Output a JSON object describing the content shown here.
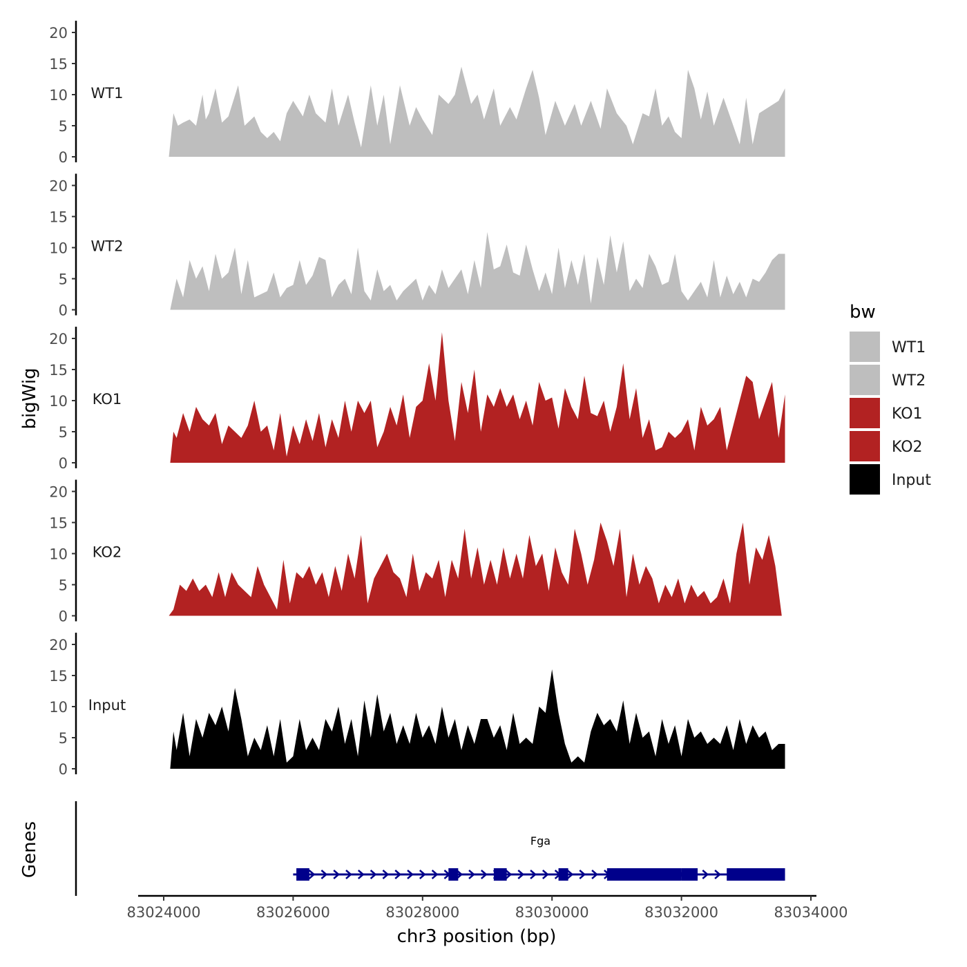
{
  "chart_data": {
    "type": "area",
    "title": "",
    "ylabel": "bigWig",
    "xlabel": "chr3 position (bp)",
    "genes_label": "Genes",
    "xlim": [
      83023600,
      83034000
    ],
    "ylim": [
      0,
      21
    ],
    "x_ticks": [
      83024000,
      83026000,
      83028000,
      83030000,
      83032000,
      83034000
    ],
    "x_tick_labels": [
      "83024000",
      "83026000",
      "83028000",
      "83030000",
      "83032000",
      "83034000"
    ],
    "y_ticks": [
      0,
      5,
      10,
      15,
      20
    ],
    "y_tick_labels": [
      "0",
      "5",
      "10",
      "15",
      "20"
    ],
    "legend": {
      "title": "bw",
      "position": "right",
      "items": [
        {
          "label": "WT1",
          "color": "#bebebe"
        },
        {
          "label": "WT2",
          "color": "#bebebe"
        },
        {
          "label": "KO1",
          "color": "#b22222"
        },
        {
          "label": "KO2",
          "color": "#b22222"
        },
        {
          "label": "Input",
          "color": "#000000"
        }
      ]
    },
    "series": [
      {
        "name": "WT1",
        "color": "#bebebe",
        "x": [
          83024080,
          83024150,
          83024220,
          83024300,
          83024400,
          83024500,
          83024600,
          83024650,
          83024700,
          83024800,
          83024900,
          83025000,
          83025150,
          83025250,
          83025400,
          83025500,
          83025600,
          83025700,
          83025800,
          83025900,
          83026000,
          83026150,
          83026250,
          83026350,
          83026500,
          83026600,
          83026700,
          83026850,
          83026950,
          83027050,
          83027200,
          83027300,
          83027400,
          83027500,
          83027650,
          83027800,
          83027900,
          83028000,
          83028150,
          83028250,
          83028400,
          83028500,
          83028600,
          83028750,
          83028850,
          83028950,
          83029100,
          83029200,
          83029350,
          83029450,
          83029600,
          83029700,
          83029800,
          83029900,
          83030050,
          83030200,
          83030350,
          83030450,
          83030600,
          83030750,
          83030850,
          83031000,
          83031150,
          83031250,
          83031400,
          83031500,
          83031600,
          83031700,
          83031800,
          83031900,
          83032000,
          83032100,
          83032200,
          83032300,
          83032400,
          83032500,
          83032650,
          83032800,
          83032900,
          83033000,
          83033100,
          83033200,
          83033350,
          83033500,
          83033600
        ],
        "values": [
          0,
          7,
          5,
          5.5,
          6,
          5,
          10,
          6,
          7,
          11,
          5.5,
          6.5,
          11.5,
          5,
          6.5,
          4,
          3,
          4,
          2.5,
          7,
          9,
          6.5,
          10,
          7,
          5.5,
          11,
          5,
          10,
          5.5,
          1.5,
          11.5,
          5,
          10,
          2,
          11.5,
          5,
          8,
          6,
          3.5,
          10,
          8.5,
          10,
          14.5,
          8.5,
          10,
          6,
          11,
          5,
          8,
          6,
          11,
          14,
          9.5,
          3.5,
          9,
          5,
          8.5,
          5,
          9,
          4.5,
          11,
          7,
          5,
          2,
          7,
          6.5,
          11,
          5,
          6.5,
          4,
          3,
          14,
          11,
          6,
          10.5,
          5,
          9.5,
          5,
          2,
          9.5,
          2,
          7,
          8,
          9,
          11
        ]
      },
      {
        "name": "WT2",
        "color": "#bebebe",
        "x": [
          83024100,
          83024200,
          83024300,
          83024400,
          83024500,
          83024600,
          83024700,
          83024800,
          83024900,
          83025000,
          83025100,
          83025200,
          83025300,
          83025400,
          83025500,
          83025600,
          83025700,
          83025800,
          83025900,
          83026000,
          83026100,
          83026200,
          83026300,
          83026400,
          83026500,
          83026600,
          83026700,
          83026800,
          83026900,
          83027000,
          83027100,
          83027200,
          83027300,
          83027400,
          83027500,
          83027600,
          83027700,
          83027800,
          83027900,
          83028000,
          83028100,
          83028200,
          83028300,
          83028400,
          83028500,
          83028600,
          83028700,
          83028800,
          83028900,
          83029000,
          83029100,
          83029200,
          83029300,
          83029400,
          83029500,
          83029600,
          83029700,
          83029800,
          83029900,
          83030000,
          83030100,
          83030200,
          83030300,
          83030400,
          83030500,
          83030600,
          83030700,
          83030800,
          83030900,
          83031000,
          83031100,
          83031200,
          83031300,
          83031400,
          83031500,
          83031600,
          83031700,
          83031800,
          83031900,
          83032000,
          83032100,
          83032200,
          83032300,
          83032400,
          83032500,
          83032600,
          83032700,
          83032800,
          83032900,
          83033000,
          83033100,
          83033200,
          83033300,
          83033400,
          83033500,
          83033600
        ],
        "values": [
          0,
          5,
          2,
          8,
          5,
          7,
          3,
          9,
          5,
          6,
          10,
          2.5,
          8,
          2,
          2.5,
          3,
          6,
          2,
          3.5,
          4,
          8,
          4,
          5.5,
          8.5,
          8,
          2,
          4,
          5,
          2.5,
          10,
          3,
          1.5,
          6.5,
          3,
          4,
          1.5,
          3,
          4,
          5,
          1.5,
          4,
          2.5,
          6.5,
          3.5,
          5,
          6.5,
          2.5,
          8,
          3.5,
          12.5,
          6.5,
          7,
          10.5,
          6,
          5.5,
          10.5,
          6.5,
          3,
          6,
          2.5,
          10,
          3.5,
          8,
          4,
          9,
          1,
          8.5,
          4,
          12,
          6,
          11,
          3,
          5,
          3.5,
          9,
          7,
          4,
          4.5,
          9,
          3,
          1.5,
          3,
          4.5,
          2,
          8,
          2,
          5.5,
          2.5,
          4.5,
          2,
          5,
          4.5,
          6,
          8,
          9,
          9
        ]
      },
      {
        "name": "KO1",
        "color": "#b22222",
        "x": [
          83024100,
          83024150,
          83024200,
          83024300,
          83024400,
          83024500,
          83024600,
          83024700,
          83024800,
          83024900,
          83025000,
          83025100,
          83025200,
          83025300,
          83025400,
          83025500,
          83025600,
          83025700,
          83025800,
          83025900,
          83026000,
          83026100,
          83026200,
          83026300,
          83026400,
          83026500,
          83026600,
          83026700,
          83026800,
          83026900,
          83027000,
          83027100,
          83027200,
          83027300,
          83027400,
          83027500,
          83027600,
          83027700,
          83027800,
          83027900,
          83028000,
          83028100,
          83028200,
          83028300,
          83028400,
          83028500,
          83028600,
          83028700,
          83028800,
          83028900,
          83029000,
          83029100,
          83029200,
          83029300,
          83029400,
          83029500,
          83029600,
          83029700,
          83029800,
          83029900,
          83030000,
          83030100,
          83030200,
          83030300,
          83030400,
          83030500,
          83030600,
          83030700,
          83030800,
          83030900,
          83031000,
          83031100,
          83031200,
          83031300,
          83031400,
          83031500,
          83031600,
          83031700,
          83031800,
          83031900,
          83032000,
          83032100,
          83032200,
          83032300,
          83032400,
          83032500,
          83032600,
          83032700,
          83032800,
          83032900,
          83033000,
          83033100,
          83033200,
          83033300,
          83033400,
          83033500,
          83033600
        ],
        "values": [
          0,
          5,
          4,
          8,
          5,
          9,
          7,
          6,
          8,
          3,
          6,
          5,
          4,
          6,
          10,
          5,
          6,
          2,
          8,
          1,
          6,
          3,
          7,
          3.5,
          8,
          2.5,
          7,
          4,
          10,
          5,
          10,
          8,
          10,
          2.5,
          5,
          9,
          6,
          11,
          4,
          9,
          10,
          16,
          10,
          21,
          10,
          3.5,
          13,
          8,
          15,
          5,
          11,
          9,
          12,
          9,
          11,
          7,
          10,
          6,
          13,
          10,
          10.5,
          5.5,
          12,
          9,
          7,
          14,
          8,
          7.5,
          10,
          5,
          9,
          16,
          7,
          12,
          4,
          7,
          2,
          2.5,
          5,
          4,
          5,
          7,
          2,
          9,
          6,
          7,
          9,
          2,
          6,
          10,
          14,
          13,
          7,
          10,
          13,
          4,
          11
        ]
      },
      {
        "name": "KO2",
        "color": "#b22222",
        "x": [
          83024080,
          83024150,
          83024250,
          83024350,
          83024450,
          83024550,
          83024650,
          83024750,
          83024850,
          83024950,
          83025050,
          83025150,
          83025250,
          83025350,
          83025450,
          83025550,
          83025650,
          83025750,
          83025850,
          83025950,
          83026050,
          83026150,
          83026250,
          83026350,
          83026450,
          83026550,
          83026650,
          83026750,
          83026850,
          83026950,
          83027050,
          83027150,
          83027250,
          83027350,
          83027450,
          83027550,
          83027650,
          83027750,
          83027850,
          83027950,
          83028050,
          83028150,
          83028250,
          83028350,
          83028450,
          83028550,
          83028650,
          83028750,
          83028850,
          83028950,
          83029050,
          83029150,
          83029250,
          83029350,
          83029450,
          83029550,
          83029650,
          83029750,
          83029850,
          83029950,
          83030050,
          83030150,
          83030250,
          83030350,
          83030450,
          83030550,
          83030650,
          83030750,
          83030850,
          83030950,
          83031050,
          83031150,
          83031250,
          83031350,
          83031450,
          83031550,
          83031650,
          83031750,
          83031850,
          83031950,
          83032050,
          83032150,
          83032250,
          83032350,
          83032450,
          83032550,
          83032650,
          83032750,
          83032850,
          83032950,
          83033050,
          83033150,
          83033250,
          83033350,
          83033450,
          83033550
        ],
        "values": [
          0,
          1,
          5,
          4,
          6,
          4,
          5,
          3,
          7,
          3,
          7,
          5,
          4,
          3,
          8,
          5,
          3,
          1,
          9,
          2,
          7,
          6,
          8,
          5,
          7,
          3,
          8,
          4,
          10,
          6,
          13,
          2,
          6,
          8,
          10,
          7,
          6,
          3,
          10,
          4,
          7,
          6,
          9,
          3,
          9,
          6,
          14,
          6,
          11,
          5,
          9,
          5,
          11,
          6,
          10,
          6,
          13,
          8,
          10,
          4,
          11,
          7,
          5,
          14,
          10,
          5,
          9,
          15,
          12,
          8,
          14,
          3,
          10,
          5,
          8,
          6,
          2,
          5,
          3,
          6,
          2,
          5,
          3,
          4,
          2,
          3,
          6,
          2,
          10,
          15,
          5,
          11,
          9,
          13,
          8,
          0
        ]
      },
      {
        "name": "Input",
        "color": "#000000",
        "x": [
          83024100,
          83024150,
          83024200,
          83024300,
          83024400,
          83024500,
          83024600,
          83024700,
          83024800,
          83024900,
          83025000,
          83025100,
          83025200,
          83025300,
          83025400,
          83025500,
          83025600,
          83025700,
          83025800,
          83025900,
          83026000,
          83026100,
          83026200,
          83026300,
          83026400,
          83026500,
          83026600,
          83026700,
          83026800,
          83026900,
          83027000,
          83027100,
          83027200,
          83027300,
          83027400,
          83027500,
          83027600,
          83027700,
          83027800,
          83027900,
          83028000,
          83028100,
          83028200,
          83028300,
          83028400,
          83028500,
          83028600,
          83028700,
          83028800,
          83028900,
          83029000,
          83029100,
          83029200,
          83029300,
          83029400,
          83029500,
          83029600,
          83029700,
          83029800,
          83029900,
          83030000,
          83030100,
          83030200,
          83030300,
          83030400,
          83030500,
          83030600,
          83030700,
          83030800,
          83030900,
          83031000,
          83031100,
          83031200,
          83031300,
          83031400,
          83031500,
          83031600,
          83031700,
          83031800,
          83031900,
          83032000,
          83032100,
          83032200,
          83032300,
          83032400,
          83032500,
          83032600,
          83032700,
          83032800,
          83032900,
          83033000,
          83033100,
          83033200,
          83033300,
          83033400,
          83033500,
          83033600
        ],
        "values": [
          0,
          6,
          3,
          9,
          2,
          8,
          5,
          9,
          7,
          10,
          6,
          13,
          8,
          2,
          5,
          3,
          7,
          2,
          8,
          1,
          2,
          8,
          3,
          5,
          3,
          8,
          6,
          10,
          4,
          8,
          2,
          11,
          5,
          12,
          6,
          9,
          4,
          7,
          4,
          9,
          5,
          7,
          4,
          10,
          5,
          8,
          3,
          7,
          4,
          8,
          8,
          5,
          7,
          3,
          9,
          4,
          5,
          4,
          10,
          9,
          16,
          9,
          4,
          1,
          2,
          1,
          6,
          9,
          7,
          8,
          6,
          11,
          4,
          9,
          5,
          6,
          2,
          8,
          4,
          7,
          2,
          8,
          5,
          6,
          4,
          5,
          4,
          7,
          3,
          8,
          4,
          7,
          5,
          6,
          3,
          4,
          4
        ]
      }
    ],
    "genes": [
      {
        "name": "Fga",
        "color": "#00008b",
        "start": 83026000,
        "end": 83033600,
        "exons": [
          [
            83026050,
            83026250
          ],
          [
            83028400,
            83028550
          ],
          [
            83029100,
            83029300
          ],
          [
            83030100,
            83030250
          ],
          [
            83030850,
            83032000
          ],
          [
            83032000,
            83032250
          ],
          [
            83032700,
            83033600
          ]
        ]
      }
    ]
  }
}
